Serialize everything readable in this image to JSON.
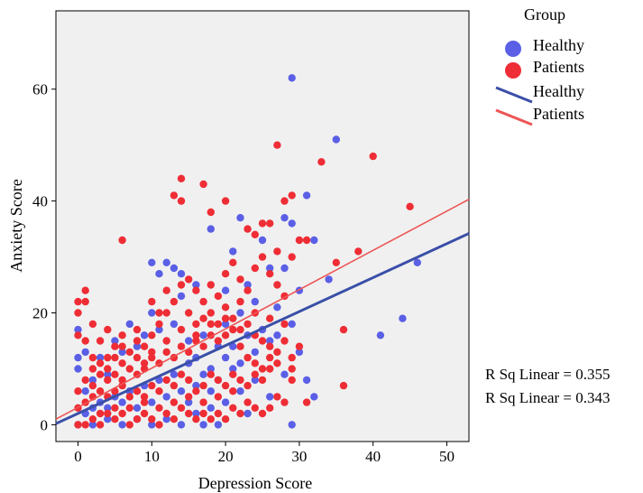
{
  "colors": {
    "healthy": "#5a5fe6",
    "patients": "#ef2d35",
    "healthy_line": "#3a4fa8",
    "patients_line": "#ee5555",
    "plot_bg": "#f0f0f0"
  },
  "chart_data": {
    "type": "scatter",
    "xlabel": "Depression Score",
    "ylabel": "Anxiety Score",
    "xlim": [
      -3,
      53
    ],
    "ylim": [
      -3,
      74
    ],
    "xticks": [
      0,
      10,
      20,
      30,
      40,
      50
    ],
    "yticks": [
      0,
      20,
      40,
      60
    ],
    "grid": false,
    "legend": {
      "title": "Group",
      "placement": "top-right",
      "entries": [
        {
          "label": "Healthy",
          "kind": "marker",
          "series": "healthy"
        },
        {
          "label": "Patients",
          "kind": "marker",
          "series": "patients"
        },
        {
          "label": "Healthy",
          "kind": "line",
          "series": "healthy"
        },
        {
          "label": "Patients",
          "kind": "line",
          "series": "patients"
        }
      ]
    },
    "annotations": [
      "R Sq Linear = 0.355",
      "R Sq Linear = 0.343"
    ],
    "fit_lines": [
      {
        "series": "healthy",
        "x": [
          -3,
          53
        ],
        "y": [
          0.2,
          34.2
        ]
      },
      {
        "series": "patients",
        "x": [
          -3,
          53
        ],
        "y": [
          1.0,
          40.3
        ]
      }
    ],
    "series": [
      {
        "name": "Healthy",
        "key": "healthy",
        "points": [
          [
            29,
            62
          ],
          [
            35,
            51
          ],
          [
            31,
            41
          ],
          [
            22,
            37
          ],
          [
            32,
            33
          ],
          [
            28,
            37
          ],
          [
            29,
            36
          ],
          [
            25,
            33
          ],
          [
            21,
            31
          ],
          [
            34,
            26
          ],
          [
            46,
            29
          ],
          [
            44,
            19
          ],
          [
            41,
            16
          ],
          [
            30,
            24
          ],
          [
            28,
            28
          ],
          [
            32,
            5
          ],
          [
            31,
            8
          ],
          [
            29,
            0
          ],
          [
            26,
            28
          ],
          [
            23,
            25
          ],
          [
            20,
            24
          ],
          [
            18,
            35
          ],
          [
            16,
            25
          ],
          [
            14,
            27
          ],
          [
            13,
            28
          ],
          [
            11,
            27
          ],
          [
            10,
            29
          ],
          [
            12,
            29
          ],
          [
            14,
            23
          ],
          [
            10,
            20
          ],
          [
            8,
            14
          ],
          [
            6,
            13
          ],
          [
            4,
            9
          ],
          [
            2,
            8
          ],
          [
            1,
            6
          ],
          [
            0,
            17
          ],
          [
            0,
            12
          ],
          [
            0,
            10
          ],
          [
            1,
            13
          ],
          [
            3,
            12
          ],
          [
            5,
            15
          ],
          [
            7,
            18
          ],
          [
            9,
            16
          ],
          [
            11,
            17
          ],
          [
            13,
            18
          ],
          [
            15,
            15
          ],
          [
            17,
            16
          ],
          [
            19,
            14
          ],
          [
            21,
            14
          ],
          [
            23,
            16
          ],
          [
            25,
            17
          ],
          [
            27,
            21
          ],
          [
            24,
            8
          ],
          [
            22,
            6
          ],
          [
            20,
            4
          ],
          [
            18,
            3
          ],
          [
            16,
            2
          ],
          [
            14,
            0
          ],
          [
            12,
            1
          ],
          [
            10,
            0
          ],
          [
            8,
            1
          ],
          [
            6,
            0
          ],
          [
            4,
            1
          ],
          [
            2,
            0
          ],
          [
            0,
            0
          ],
          [
            19,
            0
          ],
          [
            17,
            0
          ],
          [
            23,
            2
          ],
          [
            26,
            5
          ],
          [
            28,
            9
          ],
          [
            30,
            13
          ],
          [
            21,
            10
          ],
          [
            19,
            8
          ],
          [
            17,
            9
          ],
          [
            15,
            11
          ],
          [
            13,
            9
          ],
          [
            11,
            8
          ],
          [
            9,
            7
          ],
          [
            7,
            6
          ],
          [
            5,
            5
          ],
          [
            3,
            4
          ],
          [
            1,
            2
          ],
          [
            2,
            3
          ],
          [
            4,
            3
          ],
          [
            6,
            4
          ],
          [
            8,
            3
          ],
          [
            10,
            4
          ],
          [
            12,
            5
          ],
          [
            14,
            6
          ],
          [
            16,
            7
          ],
          [
            18,
            10
          ],
          [
            20,
            12
          ],
          [
            22,
            11
          ],
          [
            24,
            13
          ],
          [
            26,
            15
          ],
          [
            15,
            4
          ],
          [
            16,
            12
          ],
          [
            18,
            6
          ],
          [
            20,
            18
          ],
          [
            22,
            20
          ],
          [
            24,
            22
          ],
          [
            27,
            16
          ],
          [
            29,
            18
          ]
        ]
      },
      {
        "name": "Patients",
        "key": "patients",
        "points": [
          [
            27,
            50
          ],
          [
            33,
            47
          ],
          [
            40,
            48
          ],
          [
            45,
            39
          ],
          [
            14,
            44
          ],
          [
            17,
            43
          ],
          [
            13,
            41
          ],
          [
            14,
            40
          ],
          [
            20,
            40
          ],
          [
            28,
            40
          ],
          [
            29,
            41
          ],
          [
            18,
            38
          ],
          [
            26,
            36
          ],
          [
            23,
            35
          ],
          [
            24,
            34
          ],
          [
            25,
            36
          ],
          [
            30,
            33
          ],
          [
            31,
            33
          ],
          [
            27,
            31
          ],
          [
            29,
            30
          ],
          [
            35,
            29
          ],
          [
            38,
            31
          ],
          [
            36,
            17
          ],
          [
            36,
            7
          ],
          [
            29,
            10
          ],
          [
            29,
            8
          ],
          [
            31,
            4
          ],
          [
            6,
            33
          ],
          [
            1,
            24
          ],
          [
            1,
            22
          ],
          [
            0,
            22
          ],
          [
            0,
            20
          ],
          [
            2,
            18
          ],
          [
            4,
            17
          ],
          [
            3,
            15
          ],
          [
            5,
            14
          ],
          [
            0,
            16
          ],
          [
            1,
            15
          ],
          [
            2,
            12
          ],
          [
            3,
            11
          ],
          [
            4,
            10
          ],
          [
            5,
            12
          ],
          [
            6,
            11
          ],
          [
            7,
            13
          ],
          [
            8,
            12
          ],
          [
            9,
            10
          ],
          [
            6,
            16
          ],
          [
            8,
            17
          ],
          [
            9,
            14
          ],
          [
            10,
            16
          ],
          [
            11,
            18
          ],
          [
            12,
            20
          ],
          [
            13,
            22
          ],
          [
            14,
            25
          ],
          [
            15,
            26
          ],
          [
            16,
            24
          ],
          [
            17,
            22
          ],
          [
            18,
            25
          ],
          [
            19,
            23
          ],
          [
            20,
            27
          ],
          [
            21,
            29
          ],
          [
            22,
            26
          ],
          [
            23,
            24
          ],
          [
            24,
            28
          ],
          [
            25,
            30
          ],
          [
            26,
            27
          ],
          [
            27,
            25
          ],
          [
            28,
            23
          ],
          [
            10,
            22
          ],
          [
            11,
            20
          ],
          [
            12,
            24
          ],
          [
            15,
            20
          ],
          [
            16,
            18
          ],
          [
            17,
            19
          ],
          [
            18,
            20
          ],
          [
            19,
            18
          ],
          [
            20,
            21
          ],
          [
            21,
            19
          ],
          [
            22,
            17
          ],
          [
            23,
            18
          ],
          [
            24,
            16
          ],
          [
            25,
            15
          ],
          [
            26,
            14
          ],
          [
            27,
            13
          ],
          [
            28,
            15
          ],
          [
            29,
            12
          ],
          [
            30,
            14
          ],
          [
            0,
            0
          ],
          [
            1,
            0
          ],
          [
            2,
            1
          ],
          [
            3,
            0
          ],
          [
            4,
            2
          ],
          [
            5,
            1
          ],
          [
            6,
            2
          ],
          [
            7,
            0
          ],
          [
            8,
            1
          ],
          [
            9,
            2
          ],
          [
            10,
            1
          ],
          [
            11,
            0
          ],
          [
            12,
            2
          ],
          [
            13,
            1
          ],
          [
            14,
            3
          ],
          [
            15,
            2
          ],
          [
            16,
            1
          ],
          [
            17,
            2
          ],
          [
            18,
            1
          ],
          [
            19,
            2
          ],
          [
            20,
            1
          ],
          [
            21,
            3
          ],
          [
            22,
            2
          ],
          [
            23,
            4
          ],
          [
            24,
            3
          ],
          [
            25,
            2
          ],
          [
            26,
            3
          ],
          [
            27,
            5
          ],
          [
            28,
            4
          ],
          [
            0,
            3
          ],
          [
            1,
            4
          ],
          [
            2,
            5
          ],
          [
            3,
            6
          ],
          [
            4,
            5
          ],
          [
            5,
            6
          ],
          [
            6,
            7
          ],
          [
            7,
            5
          ],
          [
            8,
            6
          ],
          [
            9,
            5
          ],
          [
            10,
            7
          ],
          [
            11,
            6
          ],
          [
            12,
            8
          ],
          [
            13,
            7
          ],
          [
            14,
            9
          ],
          [
            15,
            8
          ],
          [
            16,
            6
          ],
          [
            17,
            7
          ],
          [
            18,
            9
          ],
          [
            19,
            8
          ],
          [
            20,
            7
          ],
          [
            21,
            9
          ],
          [
            22,
            8
          ],
          [
            23,
            7
          ],
          [
            24,
            9
          ],
          [
            25,
            8
          ],
          [
            26,
            10
          ],
          [
            27,
            11
          ],
          [
            0,
            6
          ],
          [
            1,
            8
          ],
          [
            2,
            7
          ],
          [
            3,
            9
          ],
          [
            4,
            8
          ],
          [
            5,
            9
          ],
          [
            6,
            8
          ],
          [
            7,
            10
          ],
          [
            8,
            9
          ],
          [
            9,
            11
          ],
          [
            10,
            12
          ],
          [
            11,
            11
          ],
          [
            12,
            13
          ],
          [
            13,
            12
          ],
          [
            14,
            14
          ],
          [
            15,
            13
          ],
          [
            16,
            15
          ],
          [
            17,
            14
          ],
          [
            18,
            16
          ],
          [
            19,
            15
          ],
          [
            20,
            16
          ],
          [
            21,
            17
          ],
          [
            22,
            14
          ],
          [
            23,
            12
          ],
          [
            24,
            11
          ],
          [
            25,
            10
          ],
          [
            26,
            12
          ],
          [
            3,
            2
          ],
          [
            5,
            3
          ],
          [
            7,
            3
          ],
          [
            9,
            4
          ],
          [
            11,
            3
          ],
          [
            13,
            4
          ],
          [
            15,
            5
          ],
          [
            17,
            4
          ],
          [
            19,
            5
          ],
          [
            21,
            6
          ],
          [
            2,
            10
          ],
          [
            4,
            12
          ],
          [
            6,
            14
          ],
          [
            8,
            15
          ],
          [
            10,
            13
          ],
          [
            12,
            15
          ],
          [
            14,
            17
          ],
          [
            16,
            16
          ],
          [
            18,
            18
          ],
          [
            20,
            19
          ],
          [
            22,
            22
          ],
          [
            24,
            20
          ],
          [
            26,
            19
          ],
          [
            28,
            18
          ]
        ]
      }
    ]
  }
}
